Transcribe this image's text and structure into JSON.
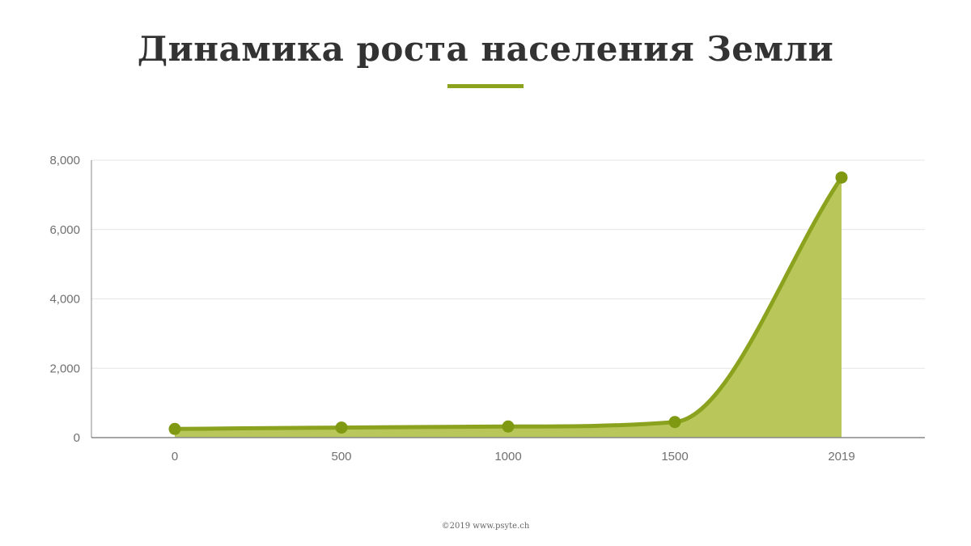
{
  "title": "Динамика роста населения Земли",
  "credit": "©2019 www.psyte.ch",
  "colors": {
    "line": "#8ba21e",
    "area": "#b9c75a",
    "grid": "#e6e6e6",
    "axis": "#888888",
    "text": "#333333"
  },
  "chart_data": {
    "type": "area",
    "categories": [
      "0",
      "500",
      "1000",
      "1500",
      "2019"
    ],
    "series": [
      {
        "values": [
          250,
          290,
          320,
          450,
          7500
        ]
      }
    ],
    "ylim": [
      0,
      8000
    ],
    "yticks": [
      "0",
      "2,000",
      "4,000",
      "6,000",
      "8,000"
    ],
    "ytick_values": [
      0,
      2000,
      4000,
      6000,
      8000
    ],
    "grid": true,
    "legend": "none",
    "markers": true
  }
}
